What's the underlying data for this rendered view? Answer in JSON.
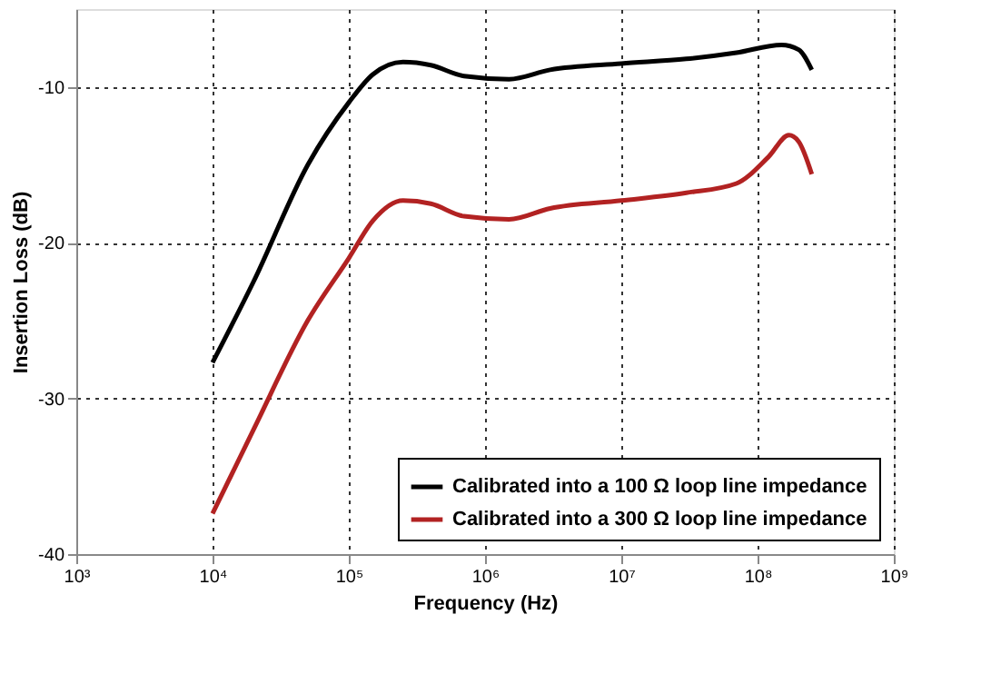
{
  "chart_data": {
    "type": "line",
    "xlabel": "Frequency (Hz)",
    "ylabel": "Insertion Loss (dB)",
    "log": "x",
    "xlim": [
      1000,
      1000000000
    ],
    "xticks": [
      {
        "value": 1000,
        "label": "10³"
      },
      {
        "value": 10000,
        "label": "10⁴"
      },
      {
        "value": 100000,
        "label": "10⁵"
      },
      {
        "value": 1000000,
        "label": "10⁶"
      },
      {
        "value": 10000000,
        "label": "10⁷"
      },
      {
        "value": 100000000,
        "label": "10⁸"
      },
      {
        "value": 1000000000,
        "label": "10⁹"
      }
    ],
    "ylim": [
      -40,
      -5
    ],
    "yticks": [
      -40,
      -30,
      -20,
      -10
    ],
    "grid": true,
    "legend": "bottom right",
    "line_style": "solid",
    "marker": "none",
    "series": [
      {
        "name": "Calibrated into a 100 Ω loop line impedance",
        "color": "#000000",
        "x": [
          10000,
          20000,
          50000,
          100000,
          150000,
          250000,
          400000,
          700000,
          1500000,
          3000000,
          10000000,
          30000000,
          70000000,
          150000000,
          200000000,
          250000000
        ],
        "values": [
          -27.7,
          -22.5,
          -15,
          -11,
          -9.2,
          -8.4,
          -8.6,
          -9.3,
          -9.5,
          -8.9,
          -8.5,
          -8.2,
          -7.8,
          -7.3,
          -7.6,
          -8.9
        ]
      },
      {
        "name": "Calibrated into a 300 Ω loop line impedance",
        "color": "#b22222",
        "x": [
          10000,
          20000,
          50000,
          100000,
          150000,
          250000,
          400000,
          700000,
          1500000,
          3000000,
          10000000,
          30000000,
          70000000,
          120000000,
          170000000,
          200000000,
          250000000
        ],
        "values": [
          -37.4,
          -32,
          -25,
          -21,
          -18.6,
          -17.3,
          -17.5,
          -18.3,
          -18.5,
          -17.8,
          -17.3,
          -16.8,
          -16.2,
          -14.5,
          -13.1,
          -13.5,
          -15.6
        ]
      }
    ]
  }
}
